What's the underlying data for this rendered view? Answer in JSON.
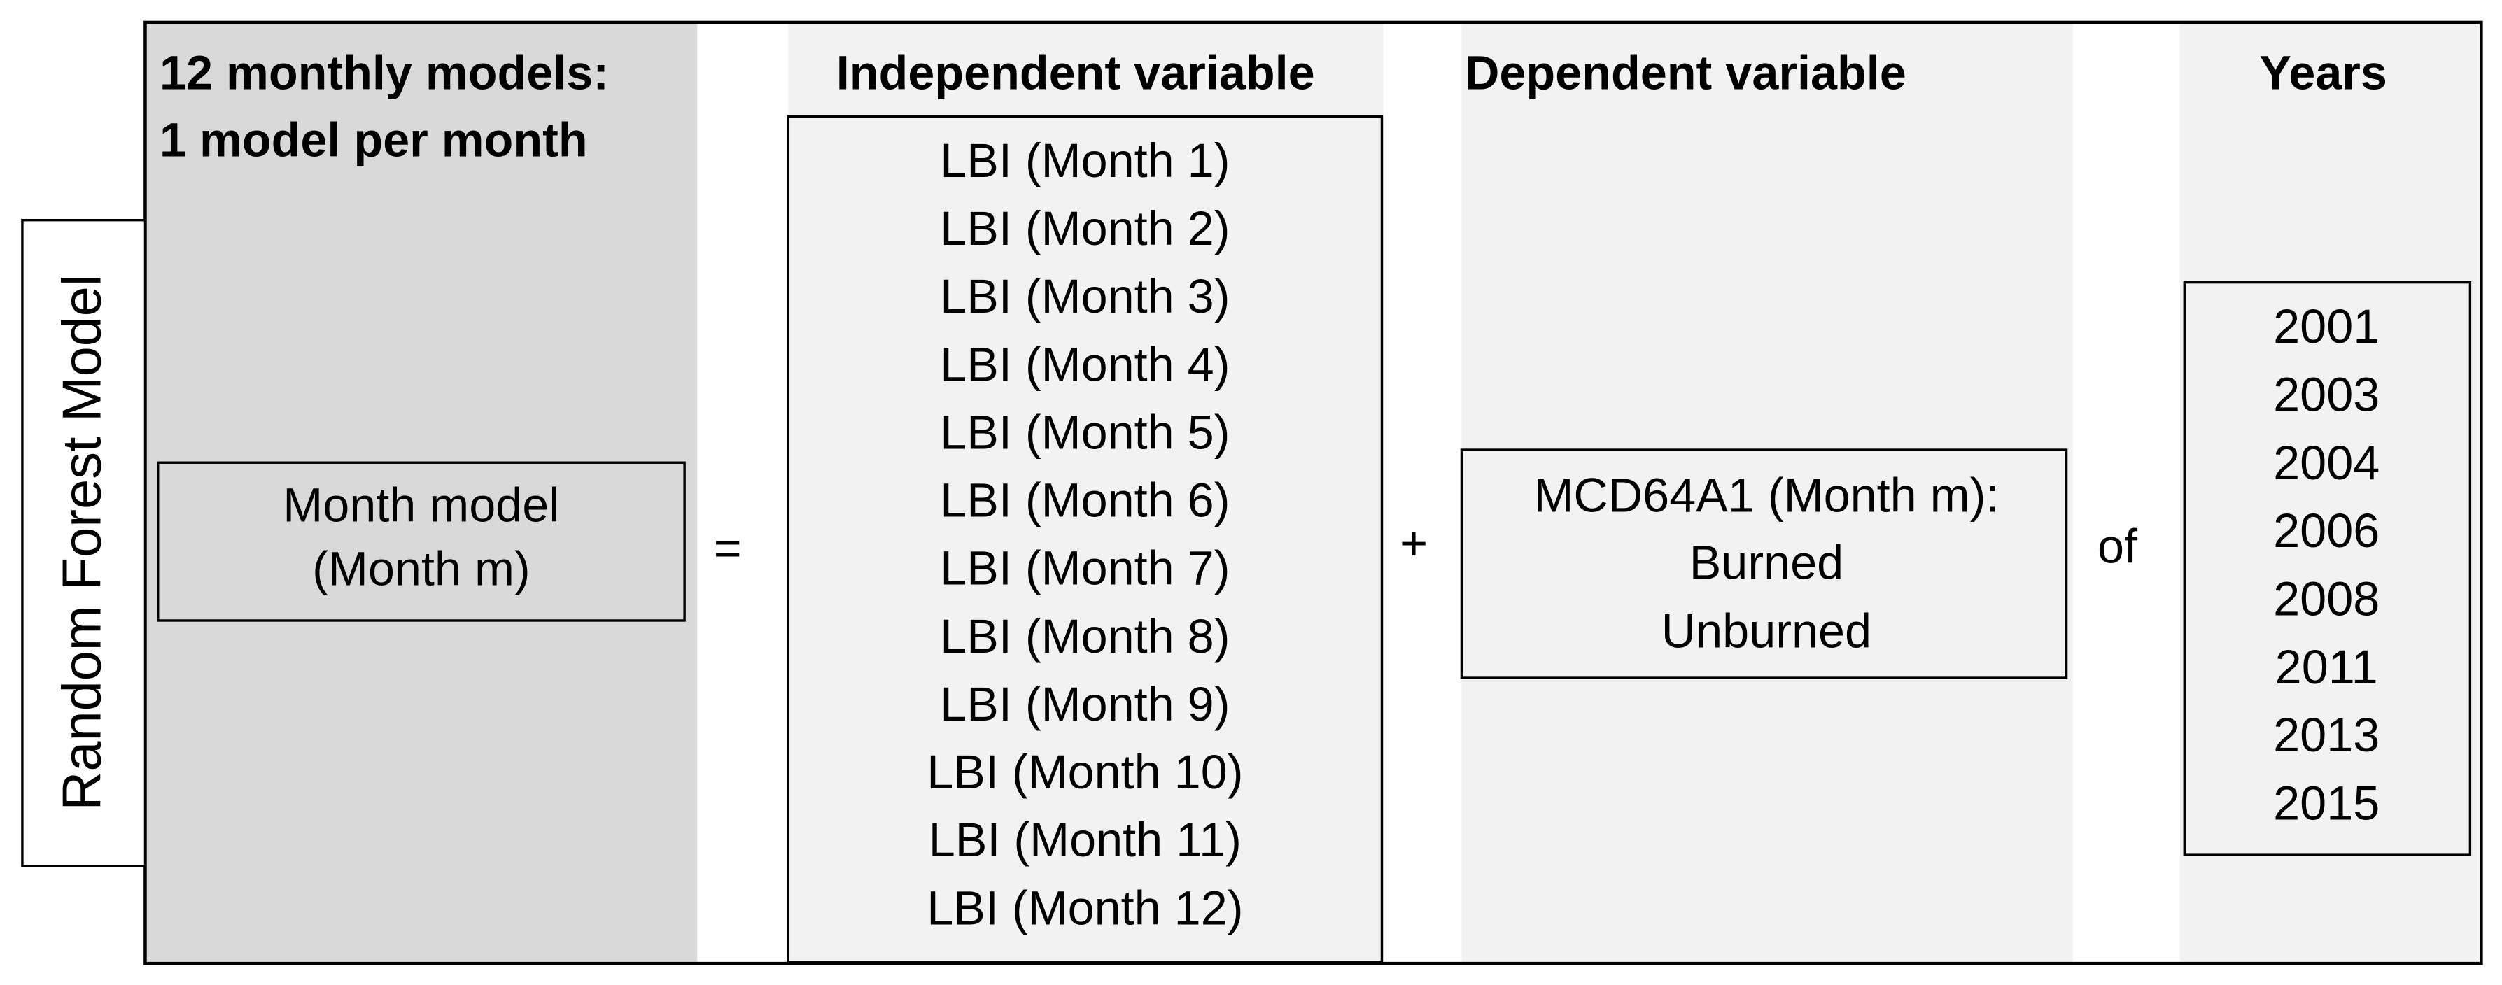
{
  "side_label": "Random Forest Model",
  "columns": {
    "models": {
      "title": [
        "12 monthly models:",
        "1 model per month"
      ],
      "box": [
        "Month model",
        "(Month m)"
      ]
    },
    "independent": {
      "title": "Independent variable",
      "items": [
        "LBI (Month 1)",
        "LBI (Month 2)",
        "LBI (Month 3)",
        "LBI (Month 4)",
        "LBI (Month 5)",
        "LBI (Month 6)",
        "LBI (Month 7)",
        "LBI (Month 8)",
        "LBI (Month 9)",
        "LBI (Month 10)",
        "LBI (Month 11)",
        "LBI (Month 12)"
      ]
    },
    "dependent": {
      "title": "Dependent variable",
      "box": [
        "MCD64A1 (Month m):",
        "Burned",
        "Unburned"
      ]
    },
    "years": {
      "title": "Years",
      "items": [
        2001,
        2003,
        2004,
        2006,
        2008,
        2011,
        2013,
        2015
      ]
    }
  },
  "operators": [
    "=",
    "+",
    "of"
  ]
}
